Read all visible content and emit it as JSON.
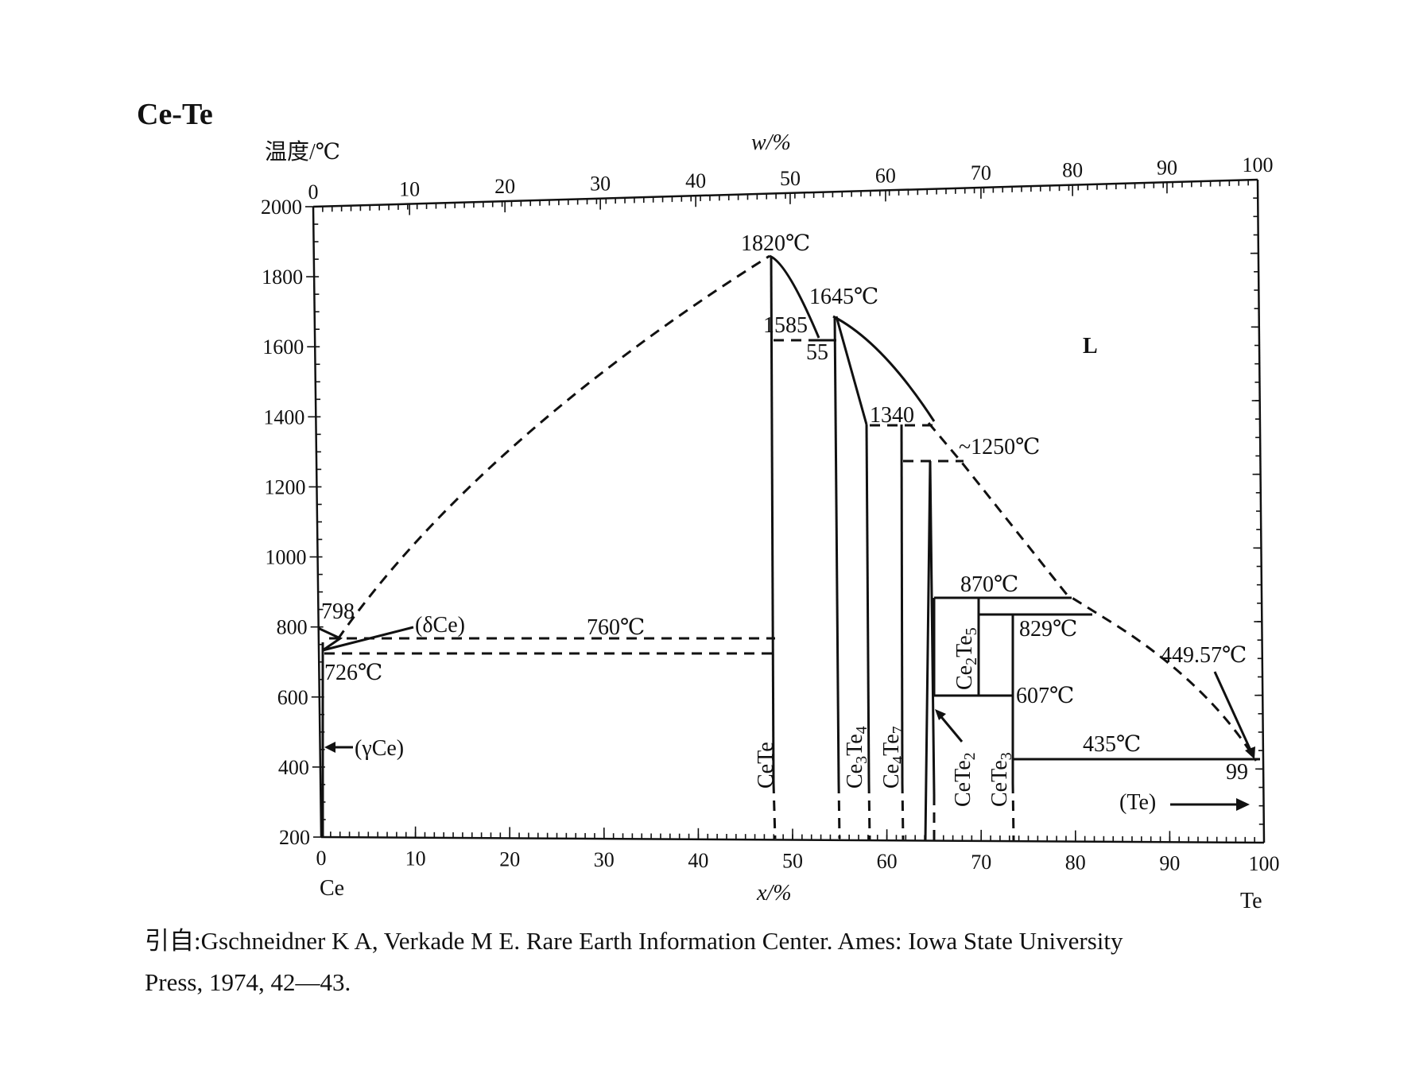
{
  "title": "Ce-Te",
  "y_axis_label": "温度/℃",
  "top_axis_label": "w/%",
  "bottom_axis_label": "x/%",
  "left_element": "Ce",
  "right_element": "Te",
  "chart_data": {
    "type": "phase-diagram",
    "y_ticks": [
      2000,
      1800,
      1600,
      1400,
      1200,
      1000,
      800,
      600,
      400,
      200
    ],
    "x_ticks": [
      0,
      10,
      20,
      30,
      40,
      50,
      60,
      70,
      80,
      90,
      100
    ],
    "w_ticks": [
      0,
      10,
      20,
      30,
      40,
      50,
      60,
      70,
      80,
      90,
      100
    ],
    "ylim": [
      200,
      2000
    ],
    "xlim": [
      0,
      100
    ],
    "labels": {
      "t1820": "1820℃",
      "t1645": "1645℃",
      "t1585": "1585",
      "c55": "55",
      "t1340": "1340",
      "t1250": "~1250℃",
      "t870": "870℃",
      "t829": "829℃",
      "t607": "607℃",
      "t435": "435℃",
      "t449": "449.57℃",
      "c99": "99",
      "t798": "798",
      "t760": "760℃",
      "t726": "726℃",
      "deltaCe": "(δCe)",
      "gammaCe": "(γCe)",
      "Te_phase": "(Te)",
      "liquid": "L"
    },
    "compounds": [
      "CeTe",
      "Ce3Te4",
      "Ce4Te7",
      "CeTe2",
      "Ce2Te5",
      "CeTe3"
    ]
  },
  "citation": {
    "line1": "引自:Gschneidner K A, Verkade M E. Rare Earth Information Center. Ames: Iowa State University",
    "line2": "Press, 1974, 42—43."
  }
}
